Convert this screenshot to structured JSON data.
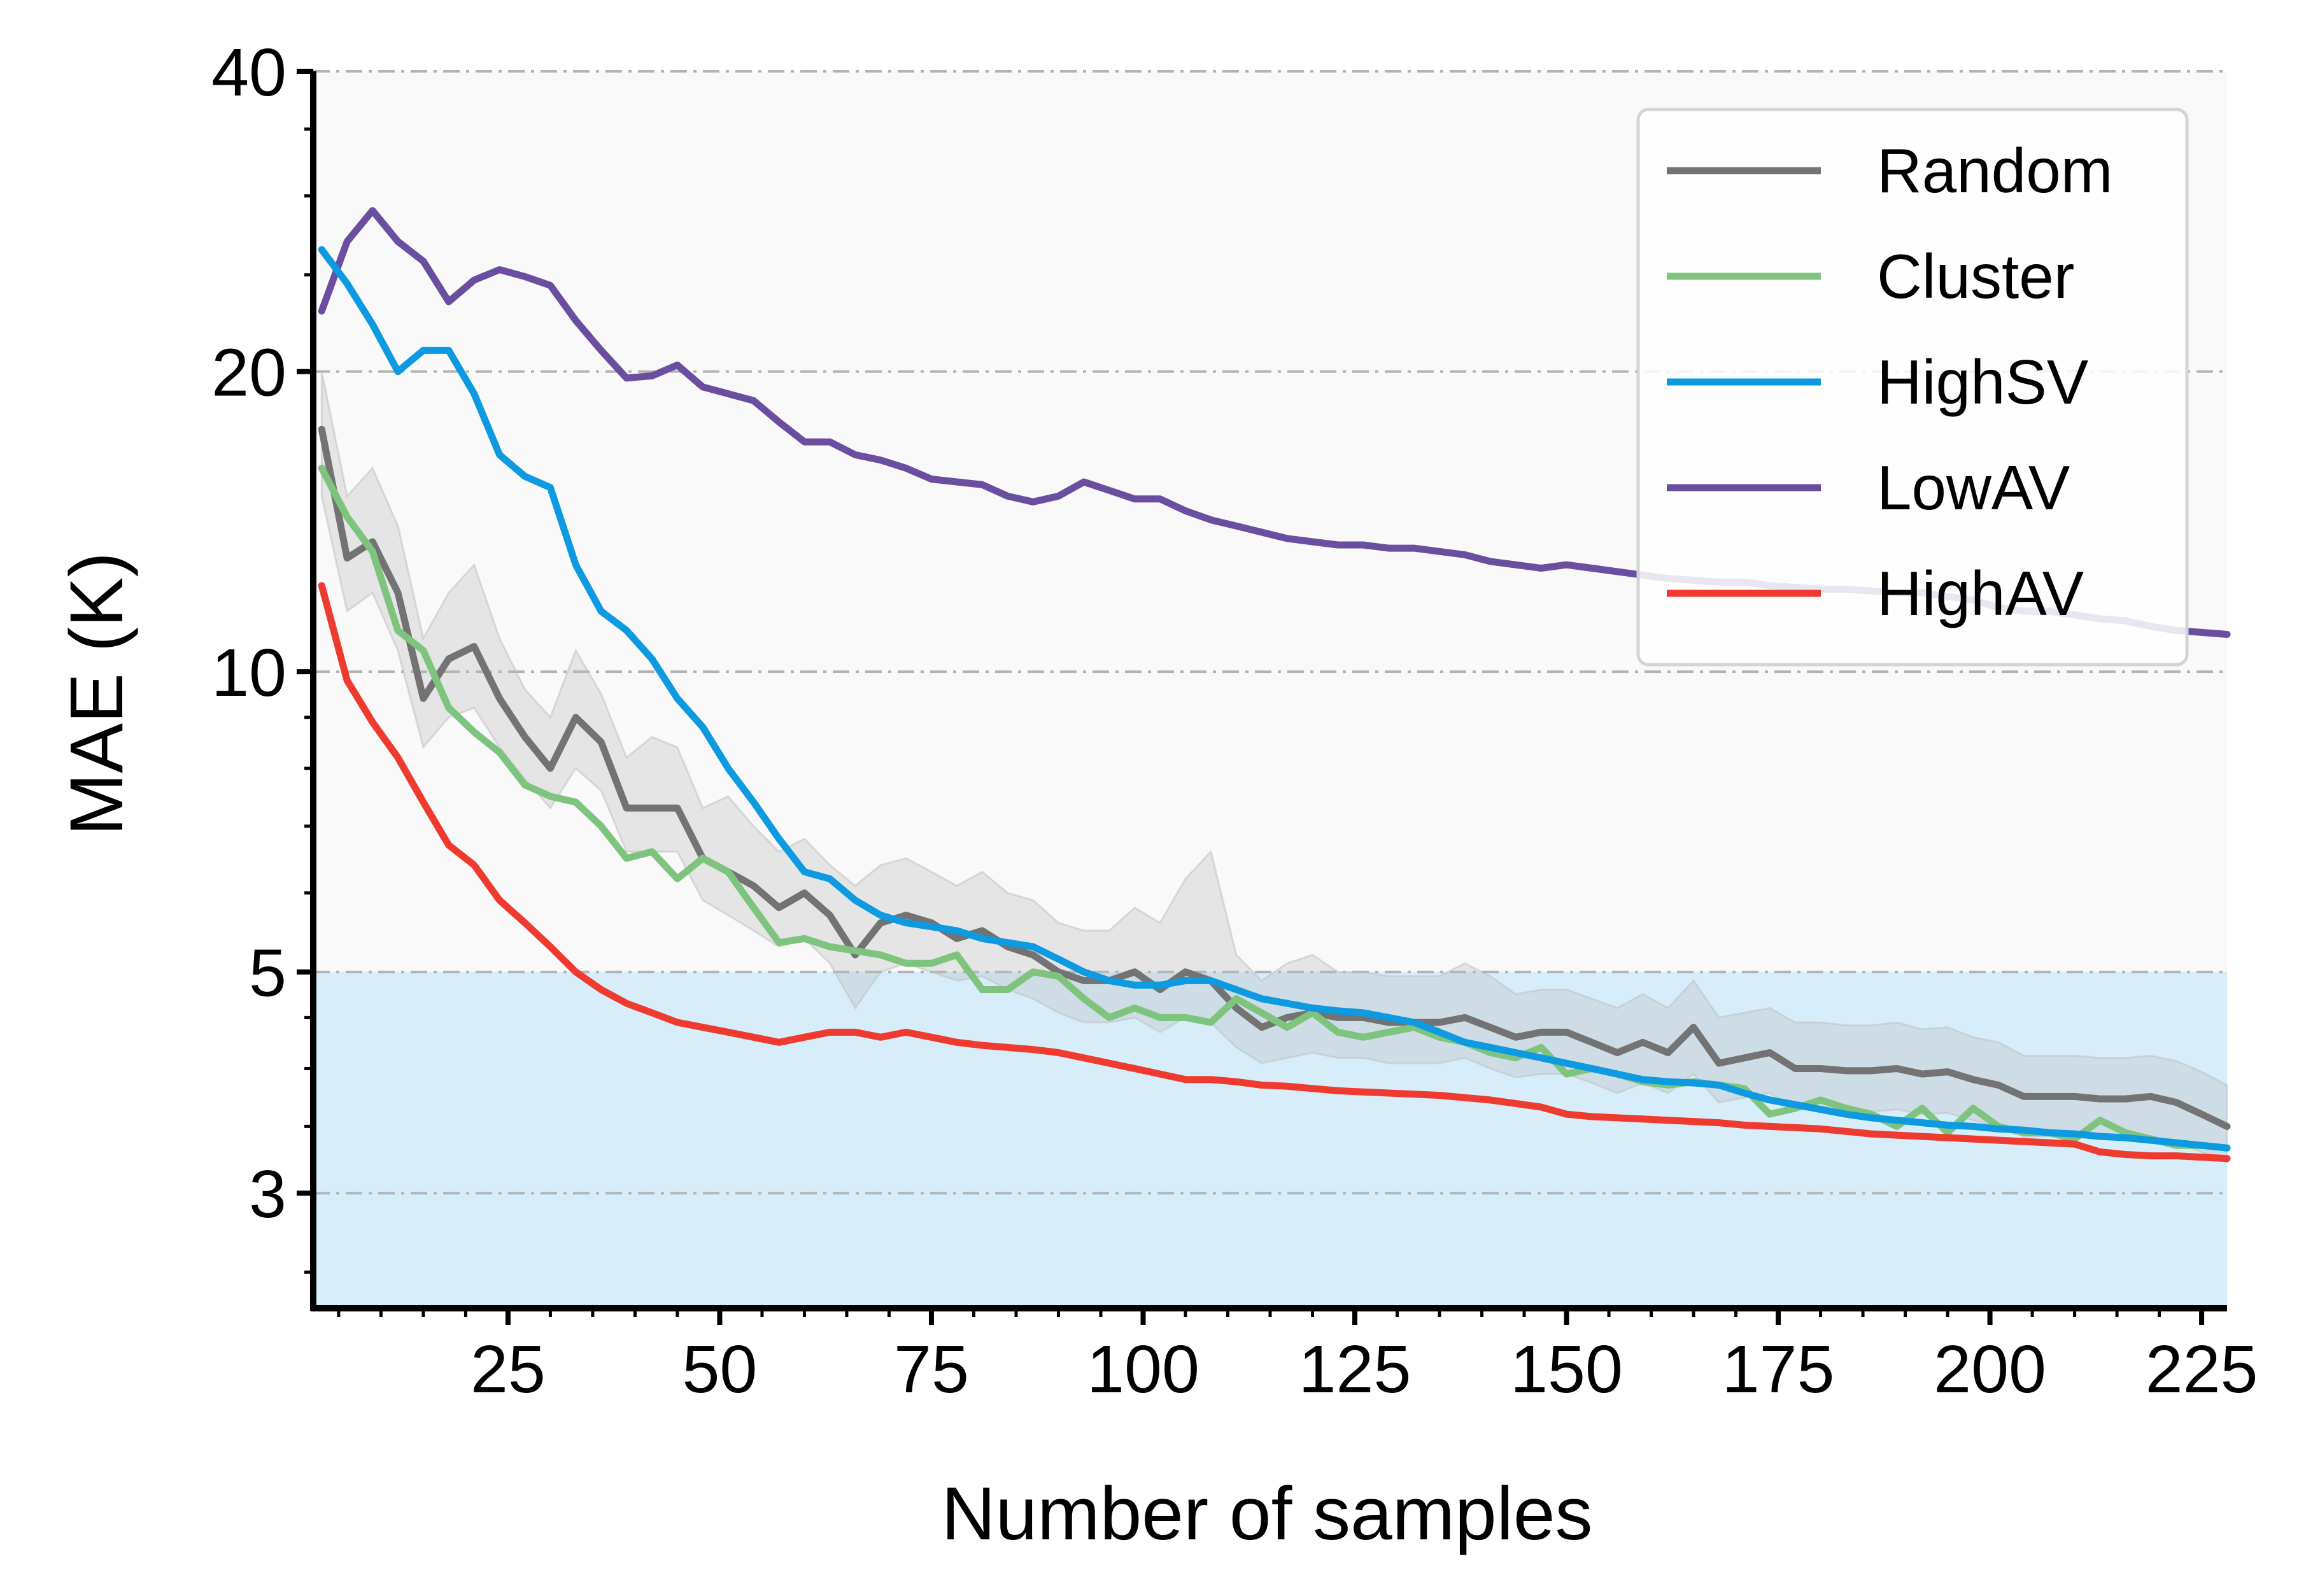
{
  "chart_data": {
    "type": "line",
    "xlabel": "Number of samples",
    "ylabel": "MAE (K)",
    "xlim": [
      2,
      228
    ],
    "ylim": [
      2.3,
      40
    ],
    "yscale": "log",
    "xticks": [
      25,
      50,
      75,
      100,
      125,
      150,
      175,
      200,
      225
    ],
    "yticks": [
      3,
      5,
      10,
      20,
      40
    ],
    "grid": "horizontal dash-dot at major y ticks",
    "legend_position": "top-right",
    "background_regions": [
      {
        "y_from": 5,
        "y_to": 40,
        "color": "#f9f9f9"
      },
      {
        "y_from": 2.3,
        "y_to": 5,
        "color": "#d7eefa"
      }
    ],
    "x": [
      3,
      6,
      9,
      12,
      15,
      18,
      21,
      24,
      27,
      30,
      33,
      36,
      39,
      42,
      45,
      48,
      51,
      54,
      57,
      60,
      63,
      66,
      69,
      72,
      75,
      78,
      81,
      84,
      87,
      90,
      93,
      96,
      99,
      102,
      105,
      108,
      111,
      114,
      117,
      120,
      123,
      126,
      129,
      132,
      135,
      138,
      141,
      144,
      147,
      150,
      153,
      156,
      159,
      162,
      165,
      168,
      171,
      174,
      177,
      180,
      183,
      186,
      189,
      192,
      195,
      198,
      201,
      204,
      207,
      210,
      213,
      216,
      219,
      222,
      225,
      228
    ],
    "series": [
      {
        "name": "Random",
        "color": "#737373",
        "values": [
          17.5,
          13,
          13.5,
          12,
          9.4,
          10.3,
          10.6,
          9.4,
          8.6,
          8.0,
          9.0,
          8.5,
          7.3,
          7.3,
          7.3,
          6.5,
          6.3,
          6.1,
          5.8,
          6.0,
          5.7,
          5.2,
          5.6,
          5.7,
          5.6,
          5.4,
          5.5,
          5.3,
          5.2,
          5.0,
          4.9,
          4.9,
          5.0,
          4.8,
          5.0,
          4.9,
          4.6,
          4.4,
          4.5,
          4.55,
          4.5,
          4.5,
          4.45,
          4.45,
          4.45,
          4.5,
          4.4,
          4.3,
          4.35,
          4.35,
          4.25,
          4.15,
          4.25,
          4.15,
          4.4,
          4.05,
          4.1,
          4.15,
          4.0,
          4.0,
          3.98,
          3.98,
          4.0,
          3.95,
          3.97,
          3.9,
          3.85,
          3.75,
          3.75,
          3.75,
          3.73,
          3.73,
          3.75,
          3.7,
          3.6,
          3.5
        ]
      },
      {
        "name": "Cluster",
        "color": "#7ec47e",
        "values": [
          16,
          14.3,
          13.2,
          11.0,
          10.5,
          9.2,
          8.7,
          8.3,
          7.7,
          7.5,
          7.4,
          7.0,
          6.5,
          6.6,
          6.2,
          6.5,
          6.3,
          5.8,
          5.35,
          5.4,
          5.3,
          5.25,
          5.2,
          5.1,
          5.1,
          5.2,
          4.8,
          4.8,
          5.0,
          4.95,
          4.7,
          4.5,
          4.6,
          4.5,
          4.5,
          4.45,
          4.7,
          4.55,
          4.4,
          4.55,
          4.35,
          4.3,
          4.35,
          4.4,
          4.3,
          4.25,
          4.15,
          4.1,
          4.2,
          3.95,
          4.0,
          3.95,
          3.88,
          3.85,
          3.88,
          3.85,
          3.82,
          3.6,
          3.65,
          3.72,
          3.65,
          3.6,
          3.5,
          3.65,
          3.45,
          3.65,
          3.5,
          3.45,
          3.45,
          3.4,
          3.55,
          3.45,
          3.4,
          3.35,
          3.35,
          3.33
        ]
      },
      {
        "name": "HighSV",
        "color": "#0d9ae0",
        "values": [
          26.5,
          24.5,
          22.3,
          20,
          21,
          21,
          19,
          16.5,
          15.7,
          15.3,
          12.8,
          11.5,
          11,
          10.3,
          9.4,
          8.8,
          8.0,
          7.4,
          6.8,
          6.3,
          6.2,
          5.9,
          5.7,
          5.6,
          5.55,
          5.5,
          5.4,
          5.35,
          5.3,
          5.15,
          5.0,
          4.9,
          4.85,
          4.85,
          4.9,
          4.9,
          4.8,
          4.7,
          4.65,
          4.6,
          4.57,
          4.55,
          4.5,
          4.45,
          4.35,
          4.25,
          4.2,
          4.15,
          4.1,
          4.05,
          4.0,
          3.95,
          3.9,
          3.88,
          3.87,
          3.85,
          3.78,
          3.72,
          3.68,
          3.64,
          3.6,
          3.57,
          3.55,
          3.53,
          3.51,
          3.5,
          3.48,
          3.47,
          3.45,
          3.44,
          3.42,
          3.41,
          3.39,
          3.37,
          3.35,
          3.33
        ]
      },
      {
        "name": "LowAV",
        "color": "#6a4fa0",
        "values": [
          23,
          27,
          29,
          27,
          25.8,
          23.5,
          24.7,
          25.3,
          24.9,
          24.4,
          22.5,
          21.0,
          19.7,
          19.8,
          20.3,
          19.3,
          19.0,
          18.7,
          17.8,
          17.0,
          17.0,
          16.5,
          16.3,
          16.0,
          15.6,
          15.5,
          15.4,
          15.0,
          14.8,
          15.0,
          15.5,
          15.2,
          14.9,
          14.9,
          14.5,
          14.2,
          14.0,
          13.8,
          13.6,
          13.5,
          13.4,
          13.4,
          13.3,
          13.3,
          13.2,
          13.1,
          12.9,
          12.8,
          12.7,
          12.8,
          12.7,
          12.6,
          12.5,
          12.4,
          12.35,
          12.3,
          12.3,
          12.2,
          12.15,
          12.1,
          12.1,
          12.05,
          12.0,
          12.0,
          11.9,
          11.8,
          11.6,
          11.5,
          11.5,
          11.4,
          11.3,
          11.25,
          11.1,
          11.0,
          10.95,
          10.9
        ]
      },
      {
        "name": "HighAV",
        "color": "#ef3b2f",
        "values": [
          12.2,
          9.8,
          8.9,
          8.2,
          7.4,
          6.7,
          6.4,
          5.9,
          5.6,
          5.3,
          5.0,
          4.8,
          4.65,
          4.55,
          4.45,
          4.4,
          4.35,
          4.3,
          4.25,
          4.3,
          4.35,
          4.35,
          4.3,
          4.35,
          4.3,
          4.25,
          4.22,
          4.2,
          4.18,
          4.15,
          4.1,
          4.05,
          4.0,
          3.95,
          3.9,
          3.9,
          3.88,
          3.85,
          3.84,
          3.82,
          3.8,
          3.79,
          3.78,
          3.77,
          3.76,
          3.74,
          3.72,
          3.69,
          3.66,
          3.6,
          3.58,
          3.57,
          3.56,
          3.55,
          3.54,
          3.53,
          3.51,
          3.5,
          3.49,
          3.48,
          3.46,
          3.44,
          3.43,
          3.42,
          3.41,
          3.4,
          3.39,
          3.38,
          3.37,
          3.36,
          3.3,
          3.28,
          3.27,
          3.27,
          3.26,
          3.25
        ]
      }
    ],
    "random_band": {
      "color": "#bdbdbd",
      "lower": [
        15,
        11.5,
        12,
        10.5,
        8.4,
        9.0,
        9.2,
        8.4,
        7.8,
        7.3,
        8.0,
        7.6,
        6.6,
        6.6,
        6.6,
        5.9,
        5.7,
        5.5,
        5.3,
        5.4,
        5.1,
        4.6,
        5.0,
        5.1,
        5.0,
        4.9,
        4.95,
        4.8,
        4.7,
        4.55,
        4.45,
        4.45,
        4.5,
        4.35,
        4.5,
        4.45,
        4.2,
        4.05,
        4.1,
        4.15,
        4.1,
        4.1,
        4.05,
        4.05,
        4.05,
        4.1,
        4.0,
        3.92,
        3.95,
        3.95,
        3.87,
        3.78,
        3.87,
        3.78,
        3.95,
        3.7,
        3.74,
        3.78,
        3.64,
        3.64,
        3.62,
        3.62,
        3.64,
        3.6,
        3.61,
        3.55,
        3.5,
        3.42,
        3.42,
        3.42,
        3.4,
        3.4,
        3.42,
        3.37,
        3.3,
        3.22
      ],
      "upper": [
        20,
        15,
        16,
        14,
        10.8,
        12,
        12.8,
        10.8,
        9.6,
        9.0,
        10.5,
        9.5,
        8.2,
        8.6,
        8.4,
        7.3,
        7.5,
        7.0,
        6.6,
        6.8,
        6.4,
        6.1,
        6.4,
        6.5,
        6.3,
        6.1,
        6.3,
        6.0,
        5.9,
        5.6,
        5.5,
        5.5,
        5.8,
        5.6,
        6.2,
        6.6,
        5.2,
        4.9,
        5.1,
        5.2,
        5.0,
        5.0,
        4.95,
        4.95,
        4.95,
        5.1,
        4.95,
        4.75,
        4.8,
        4.8,
        4.7,
        4.6,
        4.75,
        4.6,
        4.9,
        4.5,
        4.55,
        4.6,
        4.45,
        4.45,
        4.42,
        4.42,
        4.45,
        4.38,
        4.4,
        4.3,
        4.25,
        4.12,
        4.12,
        4.12,
        4.1,
        4.1,
        4.12,
        4.07,
        3.97,
        3.85
      ]
    }
  }
}
